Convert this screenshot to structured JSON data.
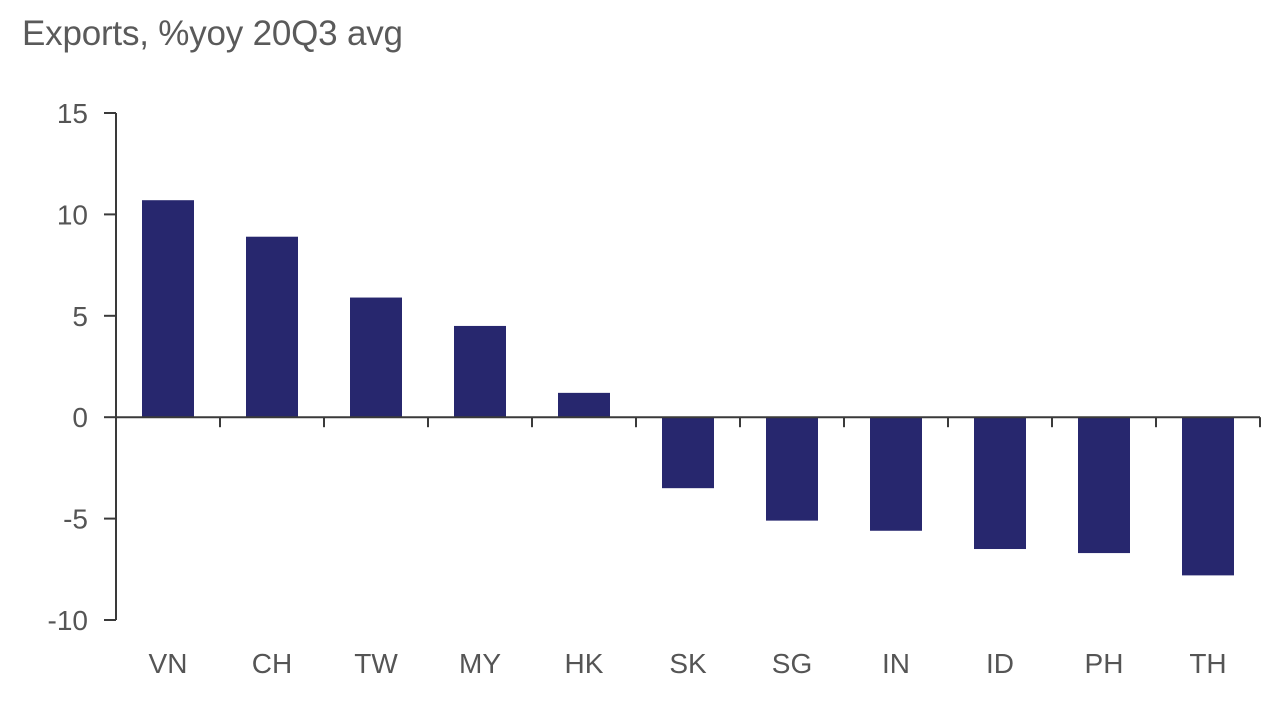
{
  "chart_data": {
    "type": "bar",
    "title": "Exports, %yoy 20Q3 avg",
    "xlabel": "",
    "ylabel": "",
    "categories": [
      "VN",
      "CH",
      "TW",
      "MY",
      "HK",
      "SK",
      "SG",
      "IN",
      "ID",
      "PH",
      "TH"
    ],
    "values": [
      10.7,
      8.9,
      5.9,
      4.5,
      1.2,
      -3.5,
      -5.1,
      -5.6,
      -6.5,
      -6.7,
      -7.8
    ],
    "ylim": [
      -10,
      15
    ],
    "yticks": [
      "15",
      "10",
      "5",
      "0",
      "-5",
      "-10"
    ],
    "grid": false,
    "legend": "none",
    "bar_color": "#27276e",
    "axis_color": "#3a3a3a"
  }
}
